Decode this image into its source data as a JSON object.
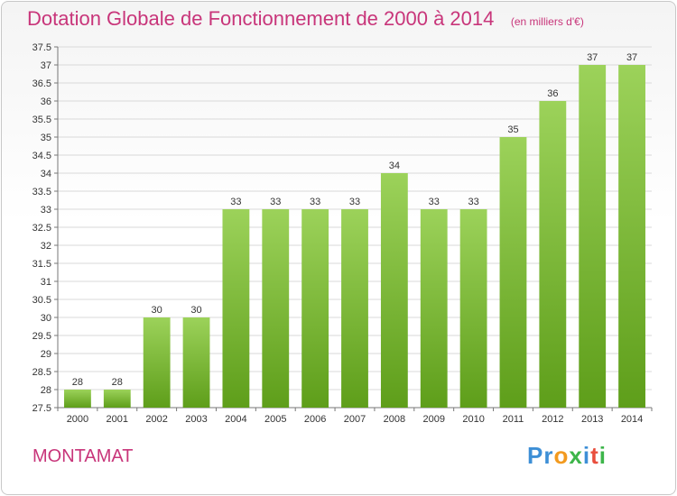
{
  "header": {
    "title": "Dotation Globale de Fonctionnement de 2000 à 2014",
    "unit": "(en milliers d'€)"
  },
  "commune": "MONTAMAT",
  "logo": {
    "letters": [
      "P",
      "r",
      "o",
      "x",
      "i",
      "t",
      "i"
    ]
  },
  "colors": {
    "accent": "#c8357a",
    "bar_top": "#9cd25a",
    "bar_bottom": "#5e9e1a",
    "grid": "#d9d9d9"
  },
  "chart_data": {
    "type": "bar",
    "categories": [
      "2000",
      "2001",
      "2002",
      "2003",
      "2004",
      "2005",
      "2006",
      "2007",
      "2008",
      "2009",
      "2010",
      "2011",
      "2012",
      "2013",
      "2014"
    ],
    "values": [
      28,
      28,
      30,
      30,
      33,
      33,
      33,
      33,
      34,
      33,
      33,
      35,
      36,
      37,
      37
    ],
    "data_labels": [
      "28",
      "28",
      "30",
      "30",
      "33",
      "33",
      "33",
      "33",
      "34",
      "33",
      "33",
      "35",
      "36",
      "37",
      "37"
    ],
    "title": "Dotation Globale de Fonctionnement de 2000 à 2014",
    "ylim": [
      27.5,
      37.5
    ],
    "yticks": [
      "27.5",
      "28",
      "28.5",
      "29",
      "29.5",
      "30",
      "30.5",
      "31",
      "31.5",
      "32",
      "32.5",
      "33",
      "33.5",
      "34",
      "34.5",
      "35",
      "35.5",
      "36",
      "36.5",
      "37",
      "37.5"
    ],
    "grid": true
  }
}
